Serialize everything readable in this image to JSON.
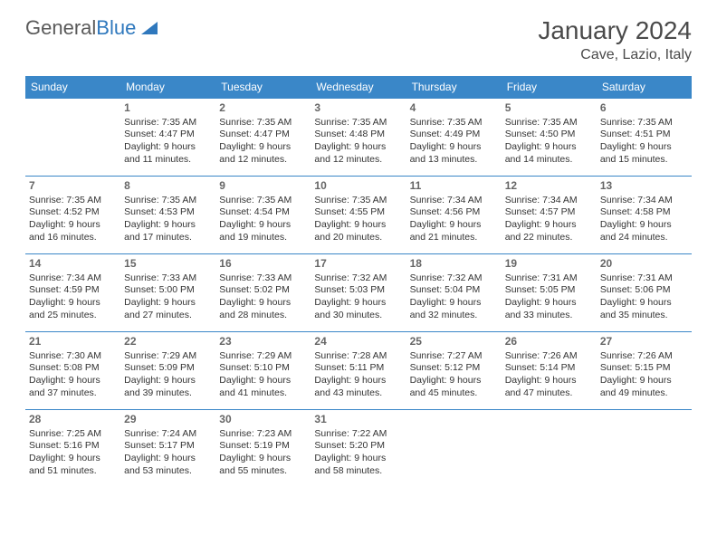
{
  "logo": {
    "part1": "General",
    "part2": "Blue"
  },
  "header": {
    "month_title": "January 2024",
    "location": "Cave, Lazio, Italy"
  },
  "style": {
    "header_bg": "#3a87c8",
    "header_text": "#ffffff",
    "border": "#3a87c8",
    "body_text": "#333333",
    "daynum_color": "#666666",
    "page_bg": "#ffffff"
  },
  "day_headers": [
    "Sunday",
    "Monday",
    "Tuesday",
    "Wednesday",
    "Thursday",
    "Friday",
    "Saturday"
  ],
  "weeks": [
    [
      {
        "day": "",
        "sunrise": "",
        "sunset": "",
        "daylight": ""
      },
      {
        "day": "1",
        "sunrise": "Sunrise: 7:35 AM",
        "sunset": "Sunset: 4:47 PM",
        "daylight": "Daylight: 9 hours and 11 minutes."
      },
      {
        "day": "2",
        "sunrise": "Sunrise: 7:35 AM",
        "sunset": "Sunset: 4:47 PM",
        "daylight": "Daylight: 9 hours and 12 minutes."
      },
      {
        "day": "3",
        "sunrise": "Sunrise: 7:35 AM",
        "sunset": "Sunset: 4:48 PM",
        "daylight": "Daylight: 9 hours and 12 minutes."
      },
      {
        "day": "4",
        "sunrise": "Sunrise: 7:35 AM",
        "sunset": "Sunset: 4:49 PM",
        "daylight": "Daylight: 9 hours and 13 minutes."
      },
      {
        "day": "5",
        "sunrise": "Sunrise: 7:35 AM",
        "sunset": "Sunset: 4:50 PM",
        "daylight": "Daylight: 9 hours and 14 minutes."
      },
      {
        "day": "6",
        "sunrise": "Sunrise: 7:35 AM",
        "sunset": "Sunset: 4:51 PM",
        "daylight": "Daylight: 9 hours and 15 minutes."
      }
    ],
    [
      {
        "day": "7",
        "sunrise": "Sunrise: 7:35 AM",
        "sunset": "Sunset: 4:52 PM",
        "daylight": "Daylight: 9 hours and 16 minutes."
      },
      {
        "day": "8",
        "sunrise": "Sunrise: 7:35 AM",
        "sunset": "Sunset: 4:53 PM",
        "daylight": "Daylight: 9 hours and 17 minutes."
      },
      {
        "day": "9",
        "sunrise": "Sunrise: 7:35 AM",
        "sunset": "Sunset: 4:54 PM",
        "daylight": "Daylight: 9 hours and 19 minutes."
      },
      {
        "day": "10",
        "sunrise": "Sunrise: 7:35 AM",
        "sunset": "Sunset: 4:55 PM",
        "daylight": "Daylight: 9 hours and 20 minutes."
      },
      {
        "day": "11",
        "sunrise": "Sunrise: 7:34 AM",
        "sunset": "Sunset: 4:56 PM",
        "daylight": "Daylight: 9 hours and 21 minutes."
      },
      {
        "day": "12",
        "sunrise": "Sunrise: 7:34 AM",
        "sunset": "Sunset: 4:57 PM",
        "daylight": "Daylight: 9 hours and 22 minutes."
      },
      {
        "day": "13",
        "sunrise": "Sunrise: 7:34 AM",
        "sunset": "Sunset: 4:58 PM",
        "daylight": "Daylight: 9 hours and 24 minutes."
      }
    ],
    [
      {
        "day": "14",
        "sunrise": "Sunrise: 7:34 AM",
        "sunset": "Sunset: 4:59 PM",
        "daylight": "Daylight: 9 hours and 25 minutes."
      },
      {
        "day": "15",
        "sunrise": "Sunrise: 7:33 AM",
        "sunset": "Sunset: 5:00 PM",
        "daylight": "Daylight: 9 hours and 27 minutes."
      },
      {
        "day": "16",
        "sunrise": "Sunrise: 7:33 AM",
        "sunset": "Sunset: 5:02 PM",
        "daylight": "Daylight: 9 hours and 28 minutes."
      },
      {
        "day": "17",
        "sunrise": "Sunrise: 7:32 AM",
        "sunset": "Sunset: 5:03 PM",
        "daylight": "Daylight: 9 hours and 30 minutes."
      },
      {
        "day": "18",
        "sunrise": "Sunrise: 7:32 AM",
        "sunset": "Sunset: 5:04 PM",
        "daylight": "Daylight: 9 hours and 32 minutes."
      },
      {
        "day": "19",
        "sunrise": "Sunrise: 7:31 AM",
        "sunset": "Sunset: 5:05 PM",
        "daylight": "Daylight: 9 hours and 33 minutes."
      },
      {
        "day": "20",
        "sunrise": "Sunrise: 7:31 AM",
        "sunset": "Sunset: 5:06 PM",
        "daylight": "Daylight: 9 hours and 35 minutes."
      }
    ],
    [
      {
        "day": "21",
        "sunrise": "Sunrise: 7:30 AM",
        "sunset": "Sunset: 5:08 PM",
        "daylight": "Daylight: 9 hours and 37 minutes."
      },
      {
        "day": "22",
        "sunrise": "Sunrise: 7:29 AM",
        "sunset": "Sunset: 5:09 PM",
        "daylight": "Daylight: 9 hours and 39 minutes."
      },
      {
        "day": "23",
        "sunrise": "Sunrise: 7:29 AM",
        "sunset": "Sunset: 5:10 PM",
        "daylight": "Daylight: 9 hours and 41 minutes."
      },
      {
        "day": "24",
        "sunrise": "Sunrise: 7:28 AM",
        "sunset": "Sunset: 5:11 PM",
        "daylight": "Daylight: 9 hours and 43 minutes."
      },
      {
        "day": "25",
        "sunrise": "Sunrise: 7:27 AM",
        "sunset": "Sunset: 5:12 PM",
        "daylight": "Daylight: 9 hours and 45 minutes."
      },
      {
        "day": "26",
        "sunrise": "Sunrise: 7:26 AM",
        "sunset": "Sunset: 5:14 PM",
        "daylight": "Daylight: 9 hours and 47 minutes."
      },
      {
        "day": "27",
        "sunrise": "Sunrise: 7:26 AM",
        "sunset": "Sunset: 5:15 PM",
        "daylight": "Daylight: 9 hours and 49 minutes."
      }
    ],
    [
      {
        "day": "28",
        "sunrise": "Sunrise: 7:25 AM",
        "sunset": "Sunset: 5:16 PM",
        "daylight": "Daylight: 9 hours and 51 minutes."
      },
      {
        "day": "29",
        "sunrise": "Sunrise: 7:24 AM",
        "sunset": "Sunset: 5:17 PM",
        "daylight": "Daylight: 9 hours and 53 minutes."
      },
      {
        "day": "30",
        "sunrise": "Sunrise: 7:23 AM",
        "sunset": "Sunset: 5:19 PM",
        "daylight": "Daylight: 9 hours and 55 minutes."
      },
      {
        "day": "31",
        "sunrise": "Sunrise: 7:22 AM",
        "sunset": "Sunset: 5:20 PM",
        "daylight": "Daylight: 9 hours and 58 minutes."
      },
      {
        "day": "",
        "sunrise": "",
        "sunset": "",
        "daylight": ""
      },
      {
        "day": "",
        "sunrise": "",
        "sunset": "",
        "daylight": ""
      },
      {
        "day": "",
        "sunrise": "",
        "sunset": "",
        "daylight": ""
      }
    ]
  ]
}
